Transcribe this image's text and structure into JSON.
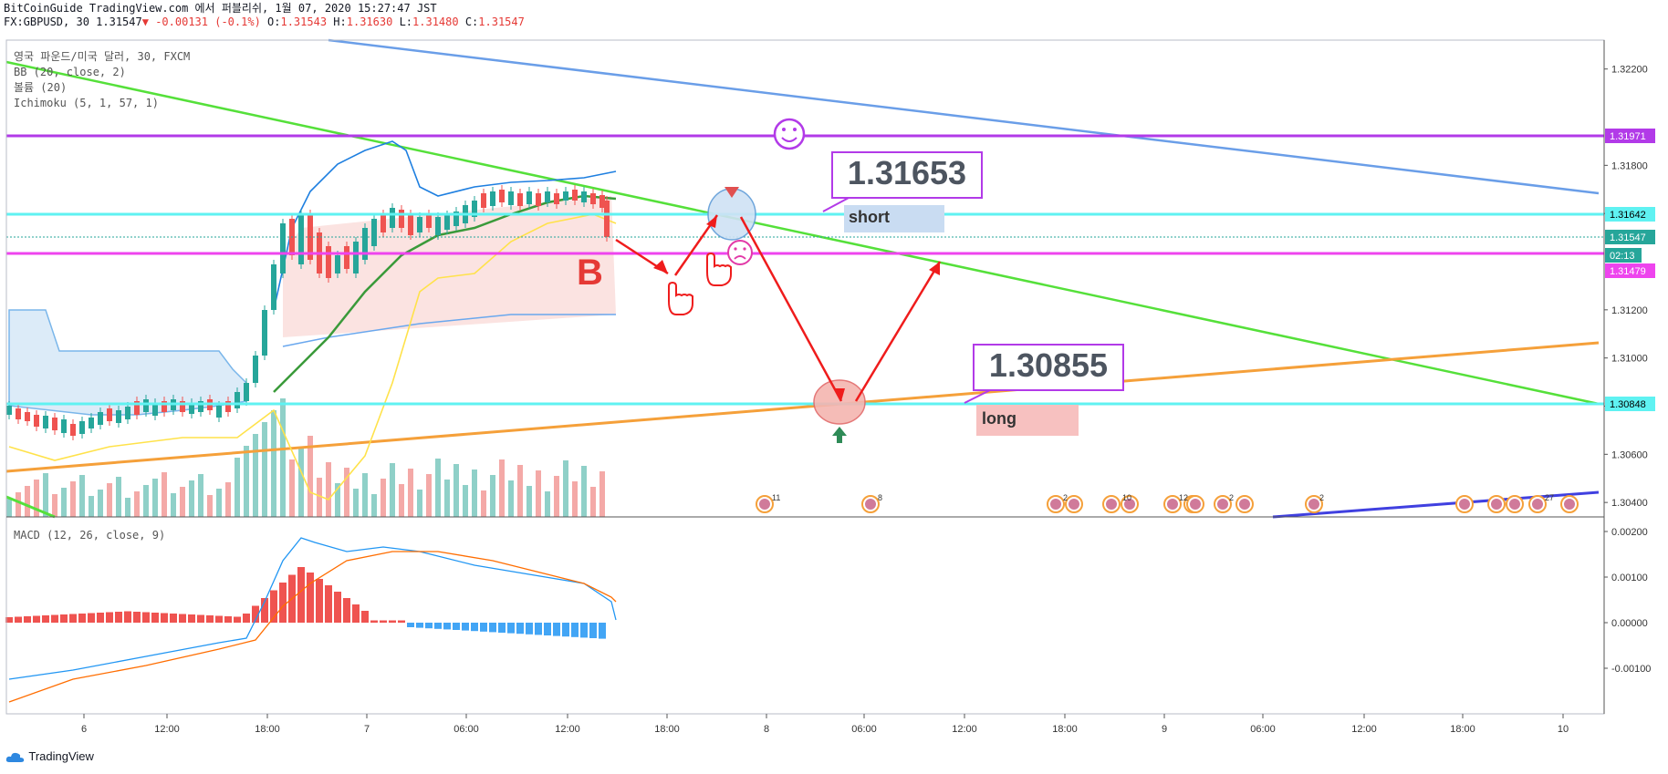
{
  "header": {
    "line1": "BitCoinGuide TradingView.com 에서 퍼블리쉬, 1월 07, 2020 15:27:47 JST",
    "symbol": "FX:GBPUSD, 30",
    "last": "1.31547",
    "change": "-0.00131 (-0.1%)",
    "o_label": "O:",
    "o": "1.31543",
    "h_label": "H:",
    "h": "1.31630",
    "l_label": "L:",
    "l": "1.31480",
    "c_label": "C:",
    "c": "1.31547"
  },
  "legend": {
    "pair": "영국 파운드/미국 달러, 30, FXCM",
    "bb": "BB (20, close, 2)",
    "volume": "볼륨 (20)",
    "ichimoku": "Ichimoku (5, 1, 57, 1)"
  },
  "macd_legend": "MACD (12, 26, close, 9)",
  "footer": "TradingView",
  "colors": {
    "bull": "#26a69a",
    "bear": "#ef5350",
    "cyan": "#5ff2f2",
    "magenta": "#ee44ee",
    "purple": "#b23ae8",
    "green_line": "#55e03a",
    "orange_line": "#f5a03a",
    "blue_line": "#6a9ee8",
    "arrow": "#ef1c1c"
  },
  "chart_data": {
    "type": "candlestick",
    "price_axis": {
      "ticks": [
        "1.32200",
        "1.31800",
        "1.31600",
        "1.31200",
        "1.31000",
        "1.30800",
        "1.30600",
        "1.30400"
      ],
      "range": [
        1.3034,
        1.3232
      ]
    },
    "time_axis": {
      "ticks": [
        "6",
        "12:00",
        "18:00",
        "7",
        "06:00",
        "12:00",
        "18:00",
        "8",
        "06:00",
        "12:00",
        "18:00",
        "9",
        "06:00",
        "12:00",
        "18:00",
        "10"
      ]
    },
    "price_labels": [
      {
        "value": "1.31971",
        "color": "#b23ae8"
      },
      {
        "value": "1.31642",
        "color": "#5ff2f2"
      },
      {
        "value": "1.31547",
        "color": "#26a69a"
      },
      {
        "value": "02:13",
        "color": "#26a69a"
      },
      {
        "value": "1.31479",
        "color": "#ee44ee"
      },
      {
        "value": "1.30848",
        "color": "#5ff2f2"
      }
    ],
    "annotations": {
      "short_price": "1.31653",
      "short_label": "short",
      "long_price": "1.30855",
      "long_label": "long",
      "marker": "B"
    },
    "horizontal_levels": [
      1.31971,
      1.31642,
      1.31479,
      1.30848
    ],
    "macd_axis": {
      "ticks": [
        "0.00200",
        "0.00100",
        "0.00000",
        "-0.00100"
      ],
      "range": [
        -0.002,
        0.0022
      ]
    },
    "events": [
      "11",
      "8",
      "2",
      "10",
      "12",
      "2",
      "2",
      "27"
    ]
  }
}
